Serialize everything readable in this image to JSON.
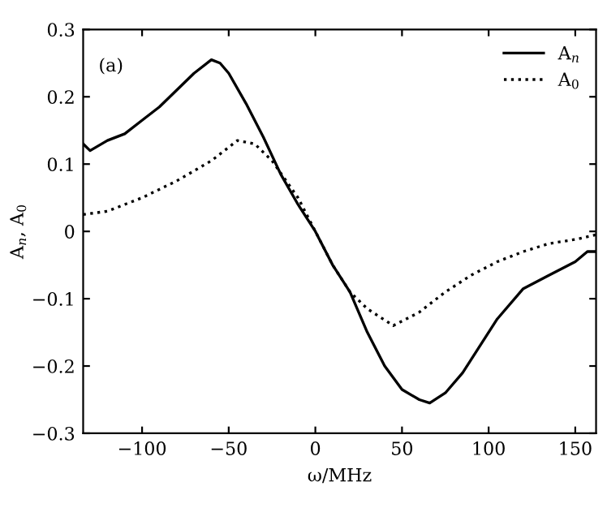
{
  "chart_data": {
    "type": "line",
    "xlabel": "ω/MHz",
    "ylabel": "A$_{n}$, A$_{0}$",
    "annotations": [
      "(a)"
    ],
    "series": [
      {
        "name": "A$_{n}$",
        "color": "#000000",
        "line_style": "solid",
        "x": [
          -134,
          -130,
          -120,
          -110,
          -100,
          -90,
          -80,
          -70,
          -60,
          -55,
          -50,
          -40,
          -30,
          -20,
          -10,
          0,
          10,
          20,
          30,
          40,
          50,
          60,
          66,
          75,
          85,
          95,
          105,
          120,
          135,
          150,
          157,
          162
        ],
        "values": [
          0.13,
          0.12,
          0.135,
          0.145,
          0.165,
          0.185,
          0.21,
          0.235,
          0.255,
          0.25,
          0.235,
          0.19,
          0.14,
          0.085,
          0.04,
          0.0,
          -0.05,
          -0.09,
          -0.15,
          -0.2,
          -0.235,
          -0.25,
          -0.255,
          -0.24,
          -0.21,
          -0.17,
          -0.13,
          -0.085,
          -0.065,
          -0.045,
          -0.03,
          -0.03
        ]
      },
      {
        "name": "A$_{0}$",
        "color": "#000000",
        "line_style": "dotted",
        "x": [
          -134,
          -120,
          -100,
          -80,
          -60,
          -45,
          -35,
          -25,
          -10,
          0,
          10,
          20,
          30,
          45,
          60,
          75,
          90,
          105,
          120,
          135,
          150,
          162
        ],
        "values": [
          0.025,
          0.03,
          0.05,
          0.075,
          0.105,
          0.135,
          0.13,
          0.105,
          0.05,
          0.0,
          -0.05,
          -0.09,
          -0.115,
          -0.14,
          -0.12,
          -0.09,
          -0.065,
          -0.045,
          -0.03,
          -0.018,
          -0.012,
          -0.005
        ]
      }
    ],
    "xlim": [
      -134,
      162
    ],
    "ylim": [
      -0.3,
      0.3
    ],
    "xticks": [
      -100,
      -50,
      0,
      50,
      100,
      150
    ],
    "yticks": [
      -0.3,
      -0.2,
      -0.1,
      0,
      0.1,
      0.2,
      0.3
    ],
    "legend": "top right",
    "grid": false,
    "marker": "none"
  }
}
